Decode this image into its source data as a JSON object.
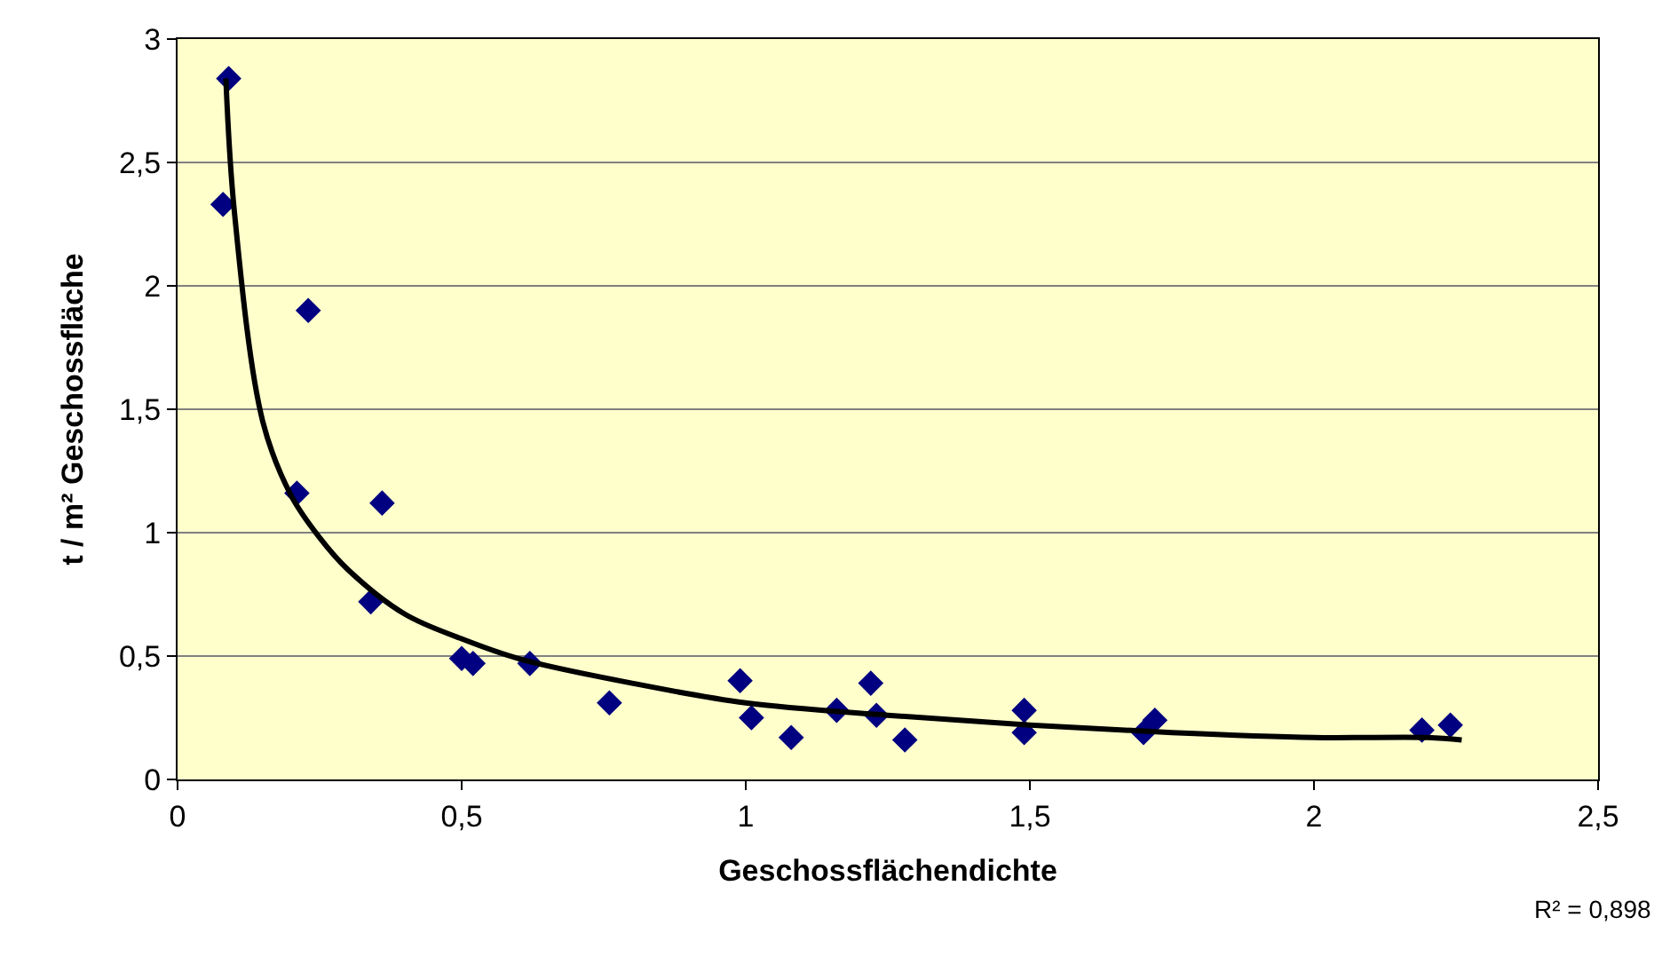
{
  "chart_data": {
    "type": "scatter",
    "xlabel": "Geschossflächendichte",
    "ylabel": "t / m² Geschossfläche",
    "annotations": [
      "R² = 0,898"
    ],
    "xlim": [
      0,
      2.5
    ],
    "xticks": [
      0,
      {
        "value": 0.5,
        "label": "0,5"
      },
      1,
      {
        "value": 1.5,
        "label": "1,5"
      },
      2,
      {
        "value": 2.5,
        "label": "2,5"
      }
    ],
    "ylim": [
      0,
      3
    ],
    "yticks": [
      0,
      {
        "value": 0.5,
        "label": "0,5"
      },
      1,
      {
        "value": 1.5,
        "label": "1,5"
      },
      2,
      {
        "value": 2.5,
        "label": "2,5"
      },
      3
    ],
    "grid": "y",
    "legend": false,
    "series": [
      {
        "marker": "diamond",
        "color": "#000080",
        "x": [
          0.09,
          0.08,
          0.23,
          0.21,
          0.36,
          0.34,
          0.5,
          0.52,
          0.62,
          0.76,
          0.99,
          1.01,
          1.08,
          1.16,
          1.22,
          1.23,
          1.28,
          1.49,
          1.49,
          1.7,
          1.72,
          2.19,
          2.24
        ],
        "values": [
          2.84,
          2.33,
          1.9,
          1.16,
          1.12,
          0.72,
          0.49,
          0.47,
          0.47,
          0.31,
          0.4,
          0.25,
          0.17,
          0.28,
          0.39,
          0.26,
          0.16,
          0.28,
          0.19,
          0.19,
          0.24,
          0.2,
          0.22
        ]
      },
      {
        "type": "line",
        "color": "#000000",
        "x": [
          0.085,
          0.1,
          0.15,
          0.2,
          0.25,
          0.3,
          0.4,
          0.5,
          0.6,
          0.8,
          1.0,
          1.25,
          1.5,
          1.75,
          2.0,
          2.2,
          2.26
        ],
        "values": [
          2.84,
          2.3,
          1.45,
          1.15,
          0.98,
          0.85,
          0.67,
          0.57,
          0.49,
          0.39,
          0.31,
          0.26,
          0.22,
          0.19,
          0.17,
          0.17,
          0.16
        ]
      }
    ]
  }
}
